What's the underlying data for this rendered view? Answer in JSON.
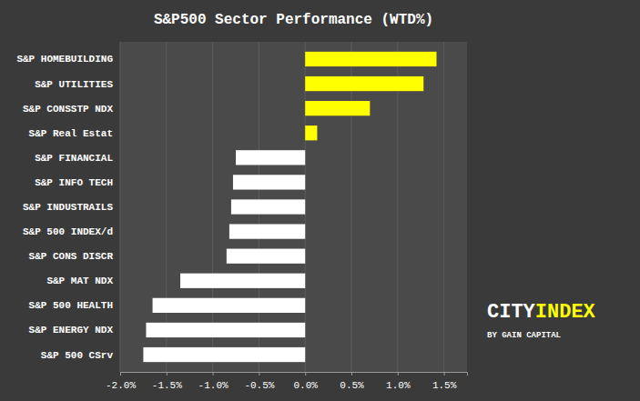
{
  "chart_data": {
    "type": "bar",
    "orientation": "horizontal",
    "title": "S&P500 Sector Performance (WTD%)",
    "categories": [
      "S&P 500 CSrv",
      "S&P ENERGY NDX",
      "S&P 500 HEALTH",
      "S&P MAT NDX",
      "S&P CONS DISCR",
      "S&P 500 INDEX/d",
      "S&P INDUSTRAILS",
      "S&P INFO TECH",
      "S&P FINANCIAL",
      "S&P Real Estat",
      "S&P CONSSTP NDX",
      "S&P UTILITIES",
      "S&P HOMEBUILDING"
    ],
    "values": [
      -1.75,
      -1.72,
      -1.65,
      -1.35,
      -0.85,
      -0.82,
      -0.8,
      -0.78,
      -0.75,
      0.13,
      0.7,
      1.28,
      1.42
    ],
    "colors": [
      "#ffffff",
      "#ffffff",
      "#ffffff",
      "#ffffff",
      "#ffffff",
      "#ffffff",
      "#ffffff",
      "#ffffff",
      "#ffffff",
      "#ffff00",
      "#ffff00",
      "#ffff00",
      "#ffff00"
    ],
    "xlim": [
      -2.0,
      1.75
    ],
    "xticks": [
      {
        "value": -2.0,
        "label": "-2.0%"
      },
      {
        "value": -1.5,
        "label": "-1.5%"
      },
      {
        "value": -1.0,
        "label": "-1.0%"
      },
      {
        "value": -0.5,
        "label": "-0.5%"
      },
      {
        "value": 0.0,
        "label": "0.0%"
      },
      {
        "value": 0.5,
        "label": "0.5%"
      },
      {
        "value": 1.0,
        "label": "1.0%"
      },
      {
        "value": 1.5,
        "label": "1.5%"
      }
    ],
    "grid": true,
    "annotations": [
      {
        "text": "CITY",
        "color": "#ffffff"
      },
      {
        "text": "INDEX",
        "color": "#ffff00"
      },
      {
        "text": "BY GAIN CAPITAL",
        "color": "#ffffff"
      }
    ]
  }
}
